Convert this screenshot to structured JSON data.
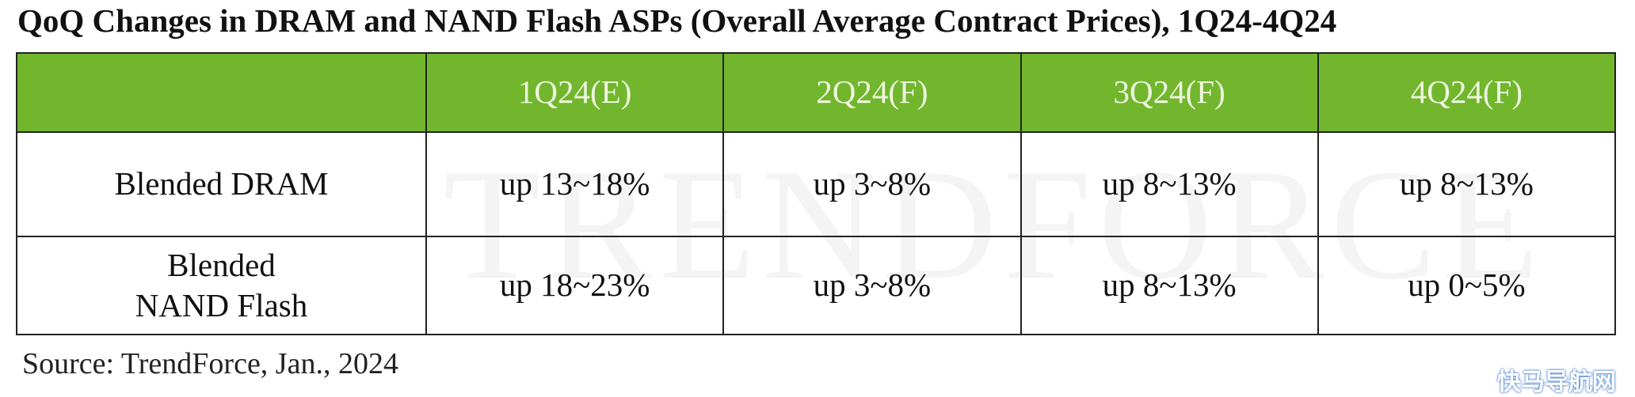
{
  "title": "QoQ Changes in DRAM and NAND Flash ASPs (Overall Average Contract Prices), 1Q24-4Q24",
  "table": {
    "columns": [
      "1Q24(E)",
      "2Q24(F)",
      "3Q24(F)",
      "4Q24(F)"
    ],
    "rows": [
      {
        "label": [
          "Blended DRAM"
        ],
        "cells": [
          "up 13~18%",
          "up 3~8%",
          "up 8~13%",
          "up 8~13%"
        ]
      },
      {
        "label": [
          "Blended",
          "NAND Flash"
        ],
        "cells": [
          "up 18~23%",
          "up 3~8%",
          "up 8~13%",
          "up 0~5%"
        ]
      }
    ]
  },
  "watermark": "TrendForce",
  "source": "Source: TrendForce, Jan., 2024",
  "site_watermark": "快马导航网"
}
